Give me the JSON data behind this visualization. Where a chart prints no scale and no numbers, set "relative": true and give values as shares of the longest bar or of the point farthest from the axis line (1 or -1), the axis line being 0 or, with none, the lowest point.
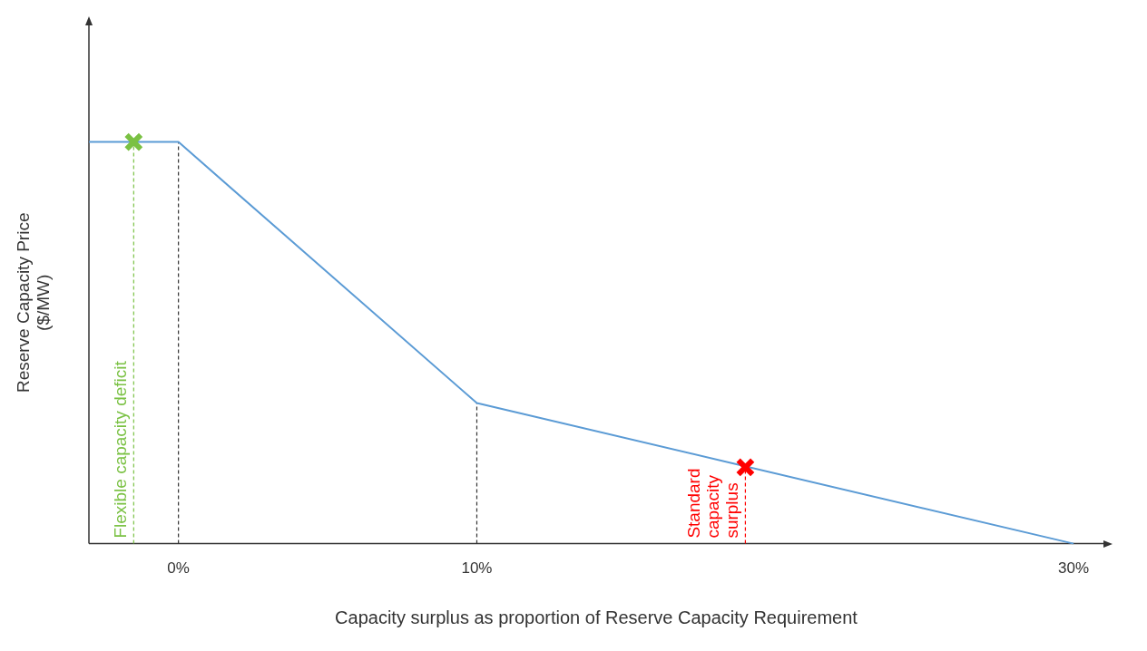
{
  "chart_data": {
    "type": "line",
    "relative": true,
    "xlabel": "Capacity surplus as proportion of Reserve Capacity Requirement",
    "ylabel": "Reserve Capacity Price ($/MW)",
    "xlim": [
      -3,
      31
    ],
    "xticks": [
      {
        "value": 0,
        "label": "0%"
      },
      {
        "value": 10,
        "label": "10%"
      },
      {
        "value": 30,
        "label": "30%"
      }
    ],
    "grid": false,
    "legend": false,
    "series": [
      {
        "type": "line",
        "color": "#5b9bd5",
        "x": [
          -3,
          0,
          10,
          30
        ],
        "values": [
          1,
          1,
          0.35,
          0
        ],
        "marker": "none",
        "line_style": "solid"
      },
      {
        "type": "scatter",
        "color": "#7ac143",
        "x": [
          -1.5
        ],
        "values": [
          1
        ],
        "marker": "cross"
      },
      {
        "type": "scatter",
        "color": "#ff0000",
        "x": [
          19
        ],
        "values": [
          0.19
        ],
        "marker": "cross"
      }
    ],
    "ref_lines": [
      {
        "axis": "x",
        "value": -1.5,
        "label": "Flexible capacity deficit",
        "color": "#7ac143",
        "line_style": "dashed"
      },
      {
        "axis": "x",
        "value": 0,
        "color": "#333333",
        "line_style": "dashed"
      },
      {
        "axis": "x",
        "value": 10,
        "color": "#333333",
        "line_style": "dashed"
      },
      {
        "axis": "x",
        "value": 19,
        "label": "Standard capacity surplus",
        "color": "#ff0000",
        "line_style": "dashed"
      }
    ]
  }
}
